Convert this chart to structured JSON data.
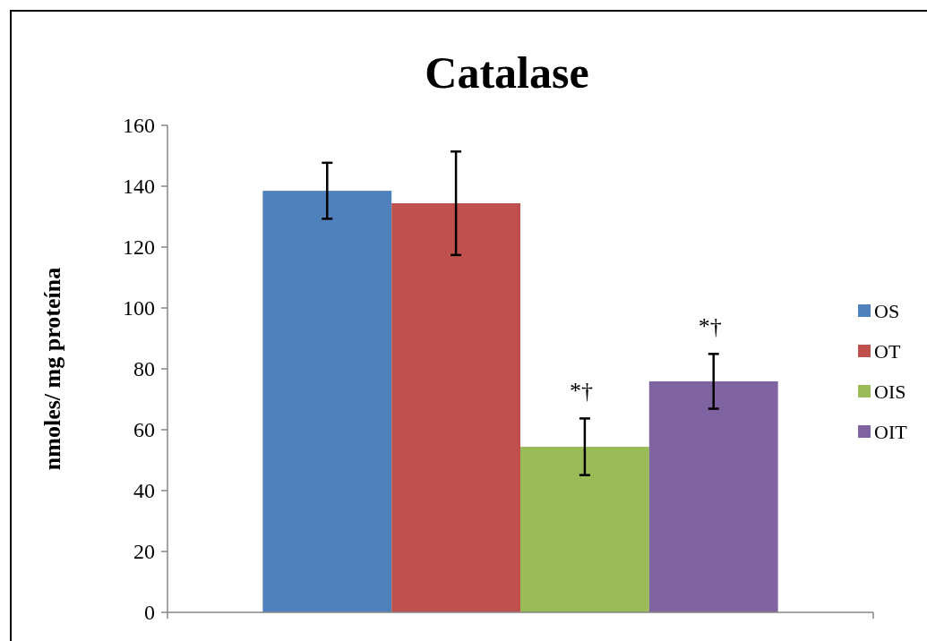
{
  "chart_data": {
    "type": "bar",
    "title": "Catalase",
    "ylabel": "nmoles/ mg  proteína",
    "categories": [
      null
    ],
    "series": [
      {
        "name": "OS",
        "color": "#4f81bd",
        "values": [
          138.5
        ],
        "errors": [
          9.2
        ]
      },
      {
        "name": "OT",
        "color": "#c0504d",
        "values": [
          134.4
        ],
        "errors": [
          17
        ]
      },
      {
        "name": "OIS",
        "color": "#9bbb59",
        "values": [
          54.4
        ],
        "errors": [
          9.3
        ],
        "value_labels": [
          "*†"
        ]
      },
      {
        "name": "OIT",
        "color": "#8064a2",
        "values": [
          75.9
        ],
        "errors": [
          9
        ],
        "value_labels": [
          "*†"
        ]
      }
    ],
    "ylim": [
      0,
      160
    ],
    "yticks": [
      0,
      20,
      40,
      60,
      80,
      100,
      120,
      140,
      160
    ],
    "legend": "right",
    "grid": false
  }
}
